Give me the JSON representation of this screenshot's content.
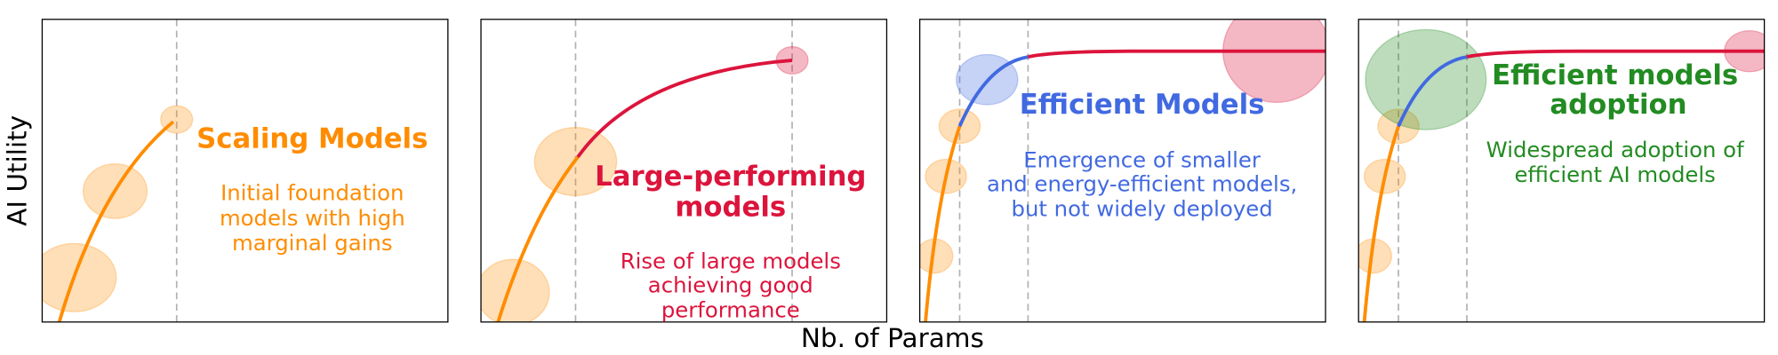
{
  "axes": {
    "y_label": "AI Utility",
    "x_label": "Nb. of Params"
  },
  "panels": [
    {
      "title": [
        "Scaling Models"
      ],
      "description": [
        "Initial foundation",
        "models with high",
        "marginal gains"
      ]
    },
    {
      "title": [
        "Large-performing",
        "models"
      ],
      "description": [
        "Rise of large models",
        "achieving good",
        "performance"
      ]
    },
    {
      "title": [
        "Efficient Models"
      ],
      "description": [
        "Emergence of smaller",
        "and energy-efficient models,",
        "but not widely deployed"
      ]
    },
    {
      "title": [
        "Efficient models",
        "adoption"
      ],
      "description": [
        "Widespread adoption of",
        "efficient AI models"
      ]
    }
  ]
}
